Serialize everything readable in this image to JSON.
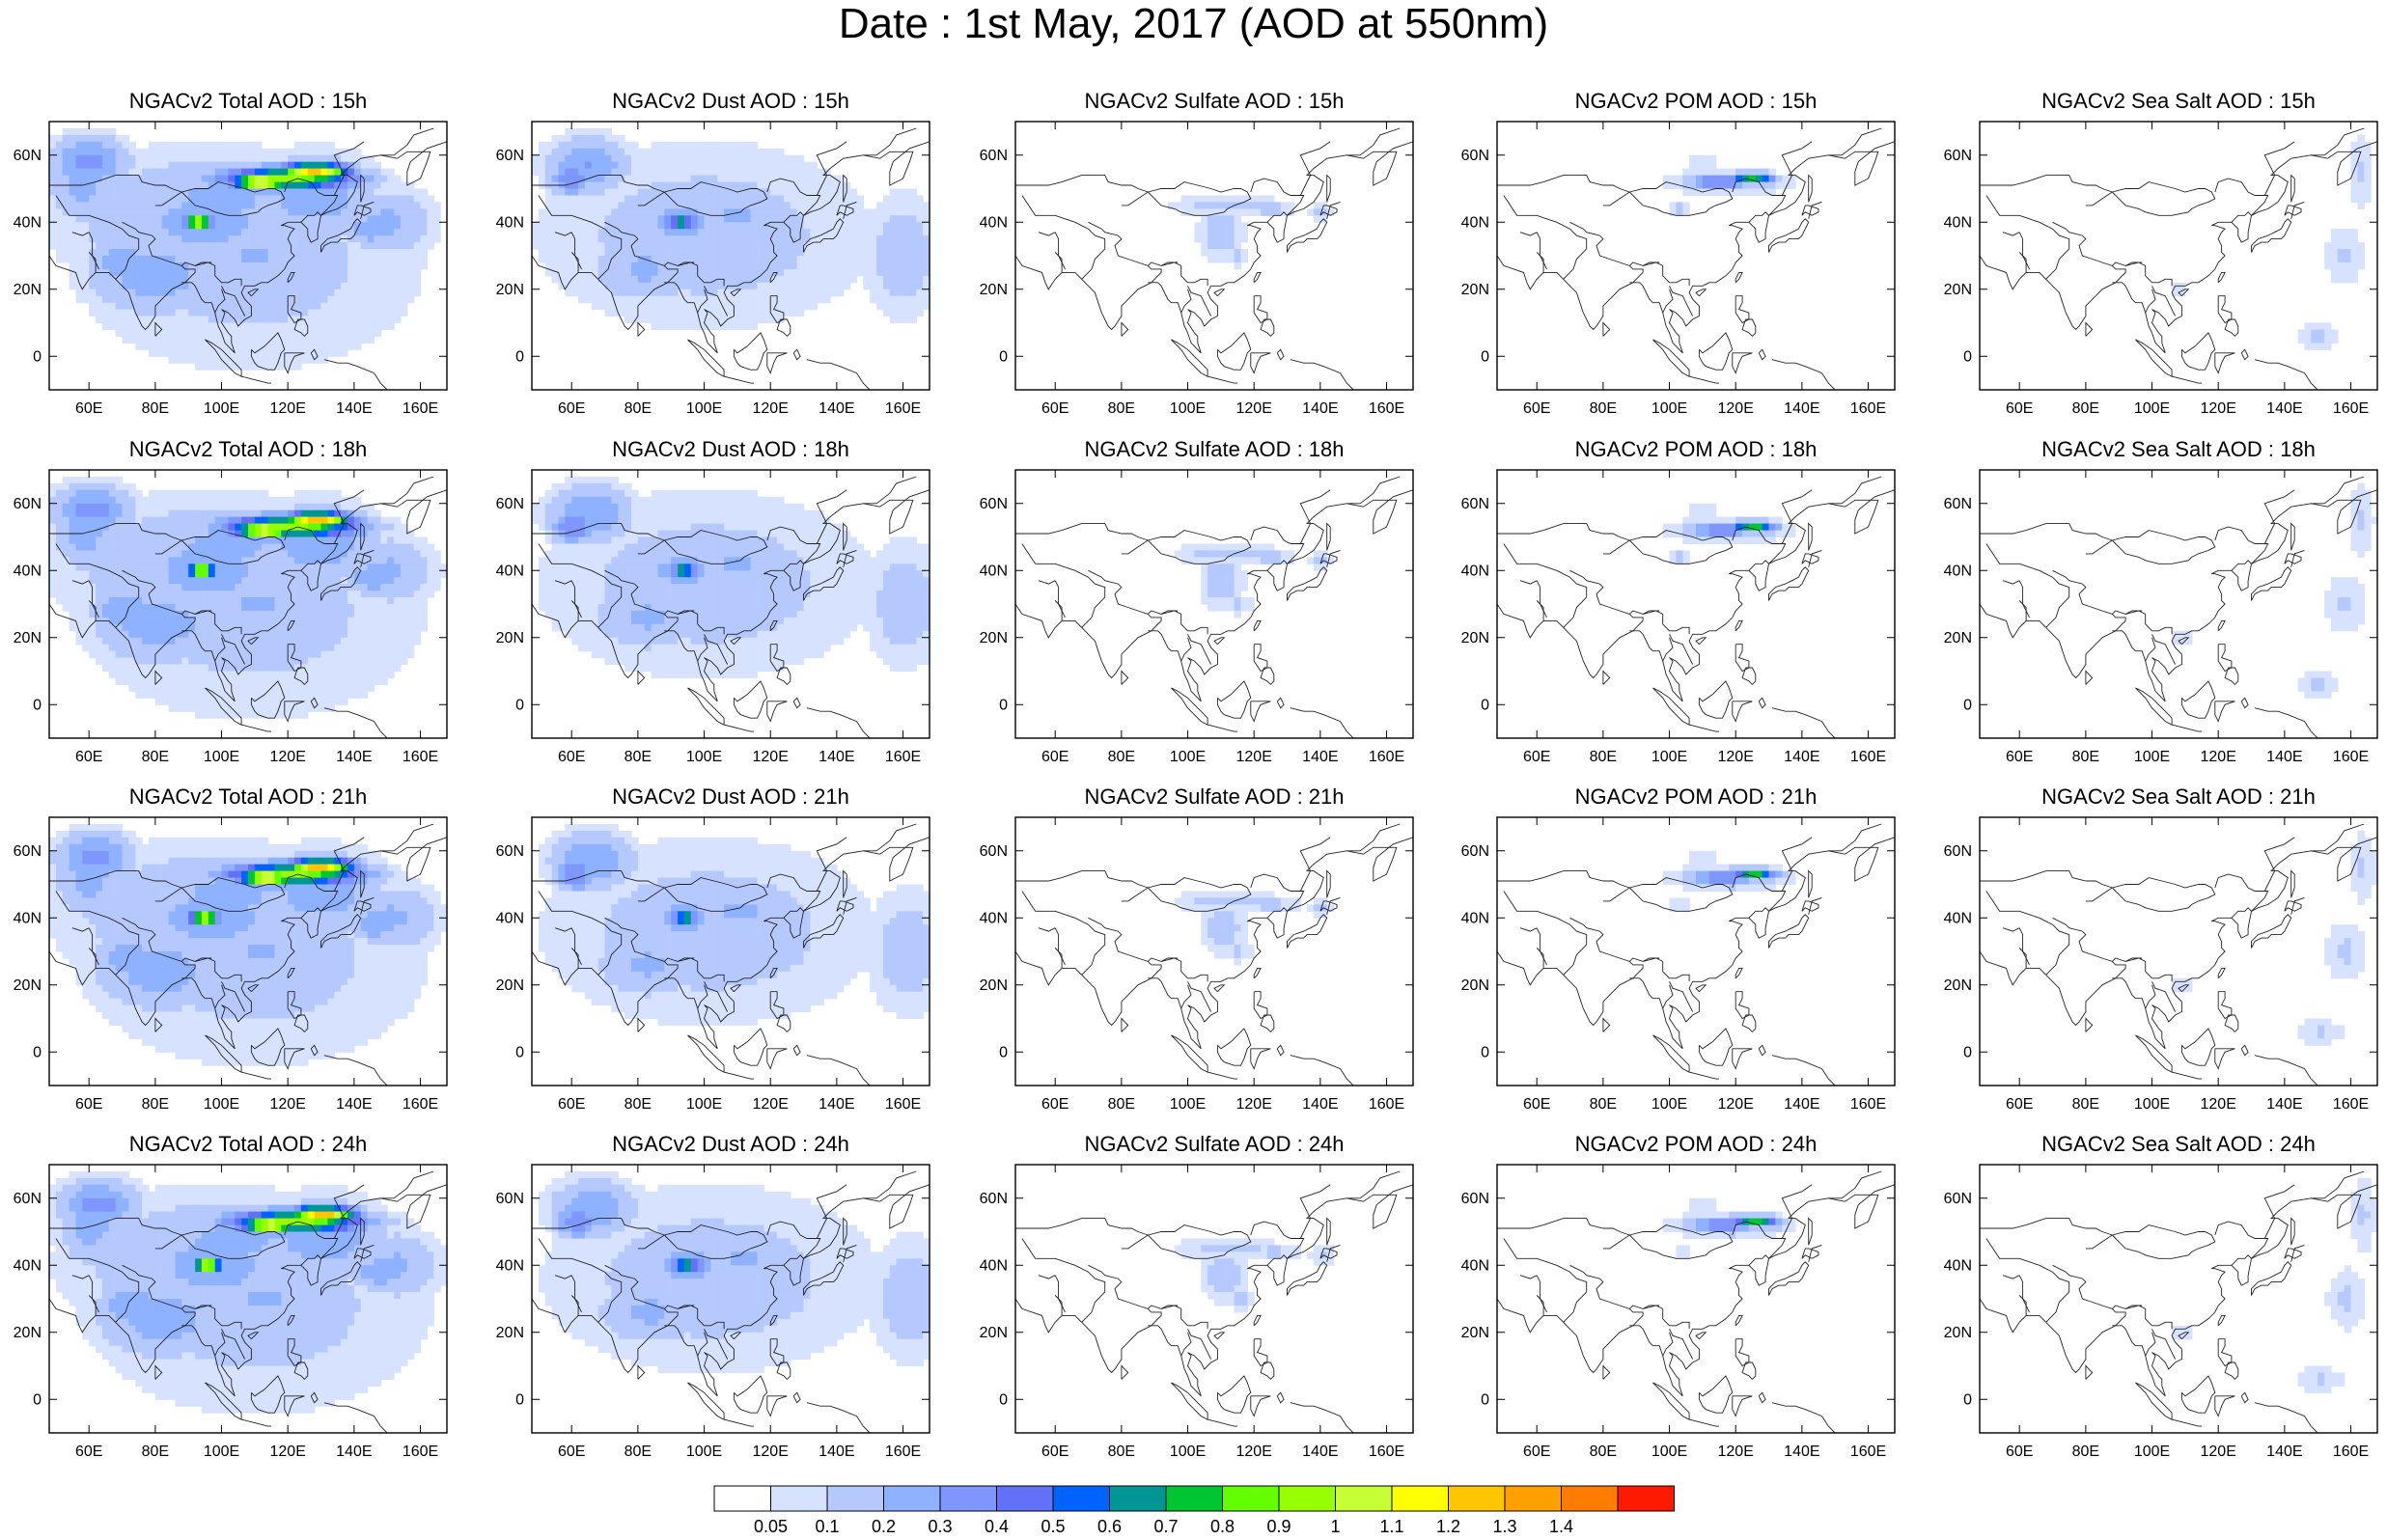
{
  "title": "Date : 1st May, 2017 (AOD at 550nm)",
  "lon_ticks": [
    "60E",
    "80E",
    "100E",
    "120E",
    "140E",
    "160E"
  ],
  "lat_ticks": [
    "60N",
    "40N",
    "20N",
    "0"
  ],
  "lon_values": [
    60,
    80,
    100,
    120,
    140,
    160
  ],
  "lat_values": [
    60,
    40,
    20,
    0
  ],
  "map_extent": {
    "lon": [
      48,
      168
    ],
    "lat": [
      -10,
      70
    ]
  },
  "rows": [
    {
      "hour": "15h",
      "panels": [
        {
          "title": "NGACv2 Total AOD : 15h",
          "species": "total"
        },
        {
          "title": "NGACv2 Dust AOD : 15h",
          "species": "dust"
        },
        {
          "title": "NGACv2 Sulfate AOD : 15h",
          "species": "sulfate"
        },
        {
          "title": "NGACv2 POM AOD : 15h",
          "species": "pom"
        },
        {
          "title": "NGACv2 Sea Salt AOD : 15h",
          "species": "seasalt"
        }
      ]
    },
    {
      "hour": "18h",
      "panels": [
        {
          "title": "NGACv2 Total AOD : 18h",
          "species": "total"
        },
        {
          "title": "NGACv2 Dust AOD : 18h",
          "species": "dust"
        },
        {
          "title": "NGACv2 Sulfate AOD : 18h",
          "species": "sulfate"
        },
        {
          "title": "NGACv2 POM AOD : 18h",
          "species": "pom"
        },
        {
          "title": "NGACv2 Sea Salt AOD : 18h",
          "species": "seasalt"
        }
      ]
    },
    {
      "hour": "21h",
      "panels": [
        {
          "title": "NGACv2 Total AOD : 21h",
          "species": "total"
        },
        {
          "title": "NGACv2 Dust AOD : 21h",
          "species": "dust"
        },
        {
          "title": "NGACv2 Sulfate AOD : 21h",
          "species": "sulfate"
        },
        {
          "title": "NGACv2 POM AOD : 21h",
          "species": "pom"
        },
        {
          "title": "NGACv2 Sea Salt AOD : 21h",
          "species": "seasalt"
        }
      ]
    },
    {
      "hour": "24h",
      "panels": [
        {
          "title": "NGACv2 Total AOD : 24h",
          "species": "total"
        },
        {
          "title": "NGACv2 Dust AOD : 24h",
          "species": "dust"
        },
        {
          "title": "NGACv2 Sulfate AOD : 24h",
          "species": "sulfate"
        },
        {
          "title": "NGACv2 POM AOD : 24h",
          "species": "pom"
        },
        {
          "title": "NGACv2 Sea Salt  AOD : 24h",
          "species": "seasalt"
        }
      ]
    }
  ],
  "colorbar": {
    "labels": [
      "0.05",
      "0.1",
      "0.2",
      "0.3",
      "0.4",
      "0.5",
      "0.6",
      "0.7",
      "0.8",
      "0.9",
      "1",
      "1.1",
      "1.2",
      "1.3",
      "1.4"
    ],
    "colors": [
      "#ffffff",
      "#d6e2ff",
      "#b5c9ff",
      "#8eb2ff",
      "#7f96ff",
      "#6370f8",
      "#0063ff",
      "#009696",
      "#00c633",
      "#63ff00",
      "#96ff00",
      "#c6ff33",
      "#ffff00",
      "#ffc600",
      "#ffa000",
      "#ff7c00",
      "#ff1900"
    ]
  }
}
